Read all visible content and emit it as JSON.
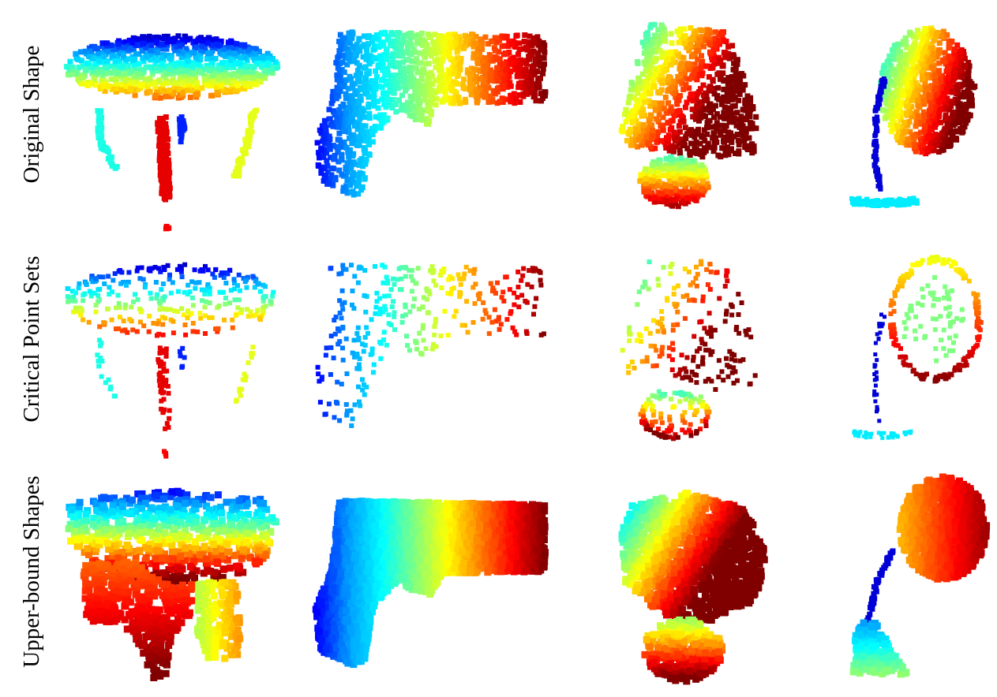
{
  "figure": {
    "rows": [
      {
        "label": "Original Shape",
        "style": "points",
        "density": "dense"
      },
      {
        "label": "Critical Point Sets",
        "style": "points",
        "density": "sparse"
      },
      {
        "label": "Upper-bound Shapes",
        "style": "solid",
        "density": "full"
      }
    ],
    "columns": [
      {
        "object": "table",
        "color_axis": "vertical"
      },
      {
        "object": "gun",
        "color_axis": "horizontal"
      },
      {
        "object": "lamp-shade",
        "color_axis": "depth"
      },
      {
        "object": "desk-lamp",
        "color_axis": "depth"
      }
    ],
    "colormap": [
      "#00008f",
      "#0000ff",
      "#00a0ff",
      "#00ffff",
      "#80ff80",
      "#ffff00",
      "#ff8000",
      "#ff0000",
      "#800000"
    ]
  }
}
